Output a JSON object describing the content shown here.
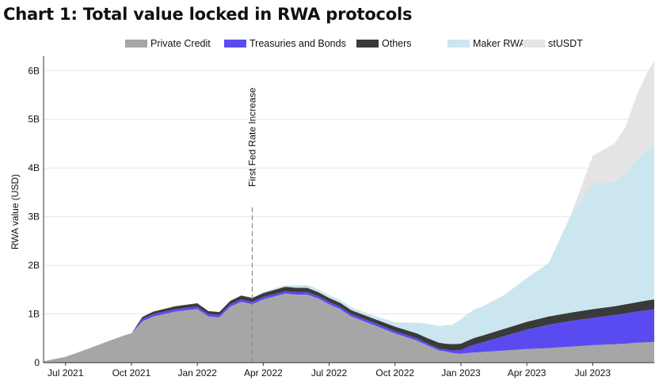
{
  "chart_data": {
    "type": "area",
    "stacked": true,
    "title": "Chart 1: Total value locked in RWA protocols",
    "xlabel": "",
    "ylabel": "RWA value (USD)",
    "ylim": [
      0,
      6.2
    ],
    "y_unit": "billion USD",
    "yticks": [
      0,
      1,
      2,
      3,
      4,
      5,
      6
    ],
    "ytick_labels": [
      "0",
      "1B",
      "2B",
      "3B",
      "4B",
      "5B",
      "6B"
    ],
    "xlim": [
      0,
      27.8
    ],
    "x_unit": "months since Jun 2021",
    "xticks": [
      {
        "x": 1,
        "label": "Jul 2021"
      },
      {
        "x": 4,
        "label": "Oct 2021"
      },
      {
        "x": 7,
        "label": "Jan 2022"
      },
      {
        "x": 10,
        "label": "Apr 2022"
      },
      {
        "x": 13,
        "label": "Jul 2022"
      },
      {
        "x": 16,
        "label": "Oct 2022"
      },
      {
        "x": 19,
        "label": "Jan 2023"
      },
      {
        "x": 22,
        "label": "Apr 2023"
      },
      {
        "x": 25,
        "label": "Jul 2023"
      }
    ],
    "grid": true,
    "legend_position": "top",
    "annotation": {
      "x": 9.5,
      "label": "First Fed Rate Increase"
    },
    "x": [
      0,
      1,
      2,
      3,
      3.8,
      4,
      4.5,
      5,
      6,
      7,
      7.5,
      8,
      8.5,
      9,
      9.5,
      10,
      11,
      11.5,
      12,
      12.5,
      13,
      13.5,
      14,
      15,
      16,
      17,
      17.5,
      18,
      18.3,
      18.6,
      19,
      19.3,
      19.6,
      20,
      21,
      22,
      23,
      24,
      25,
      26,
      26.5,
      27,
      27.5,
      27.8
    ],
    "series": [
      {
        "name": "Private Credit",
        "color": "#a6a6a6",
        "values": [
          0.03,
          0.12,
          0.28,
          0.45,
          0.58,
          0.6,
          0.85,
          0.95,
          1.05,
          1.1,
          0.95,
          0.93,
          1.15,
          1.25,
          1.2,
          1.3,
          1.42,
          1.4,
          1.4,
          1.32,
          1.2,
          1.1,
          0.95,
          0.78,
          0.6,
          0.45,
          0.35,
          0.25,
          0.23,
          0.2,
          0.18,
          0.2,
          0.21,
          0.22,
          0.25,
          0.28,
          0.3,
          0.33,
          0.36,
          0.38,
          0.39,
          0.41,
          0.42,
          0.43
        ]
      },
      {
        "name": "Treasuries and Bonds",
        "color": "#5a4bf0",
        "values": [
          0,
          0,
          0,
          0,
          0,
          0,
          0.05,
          0.05,
          0.05,
          0.05,
          0.05,
          0.05,
          0.05,
          0.05,
          0.05,
          0.05,
          0.05,
          0.05,
          0.05,
          0.05,
          0.05,
          0.05,
          0.05,
          0.05,
          0.05,
          0.05,
          0.04,
          0.04,
          0.04,
          0.05,
          0.08,
          0.12,
          0.16,
          0.2,
          0.3,
          0.4,
          0.48,
          0.53,
          0.56,
          0.6,
          0.62,
          0.64,
          0.66,
          0.67
        ]
      },
      {
        "name": "Others",
        "color": "#3a3a3a",
        "values": [
          0,
          0,
          0,
          0,
          0,
          0,
          0.04,
          0.05,
          0.06,
          0.07,
          0.06,
          0.06,
          0.07,
          0.08,
          0.08,
          0.08,
          0.09,
          0.09,
          0.09,
          0.08,
          0.08,
          0.08,
          0.08,
          0.08,
          0.09,
          0.1,
          0.11,
          0.12,
          0.12,
          0.13,
          0.13,
          0.13,
          0.14,
          0.14,
          0.15,
          0.16,
          0.17,
          0.17,
          0.18,
          0.18,
          0.19,
          0.19,
          0.2,
          0.2
        ]
      },
      {
        "name": "Maker RWA",
        "color": "#cce6ef",
        "values": [
          0,
          0,
          0,
          0,
          0,
          0,
          0,
          0,
          0,
          0,
          0,
          0,
          0,
          0,
          0,
          0.02,
          0.03,
          0.05,
          0.06,
          0.06,
          0.06,
          0.06,
          0.06,
          0.06,
          0.09,
          0.22,
          0.3,
          0.34,
          0.38,
          0.4,
          0.5,
          0.55,
          0.58,
          0.6,
          0.7,
          0.9,
          1.1,
          2.0,
          2.6,
          2.55,
          2.7,
          2.95,
          3.1,
          3.2
        ]
      },
      {
        "name": "stUSDT",
        "color": "#e4e4e4",
        "values": [
          0,
          0,
          0,
          0,
          0,
          0,
          0,
          0,
          0,
          0,
          0,
          0,
          0,
          0,
          0,
          0,
          0,
          0,
          0,
          0,
          0,
          0,
          0,
          0,
          0,
          0,
          0,
          0,
          0,
          0,
          0,
          0,
          0,
          0,
          0,
          0,
          0,
          0,
          0.55,
          0.8,
          0.95,
          1.3,
          1.6,
          1.7
        ]
      }
    ]
  }
}
